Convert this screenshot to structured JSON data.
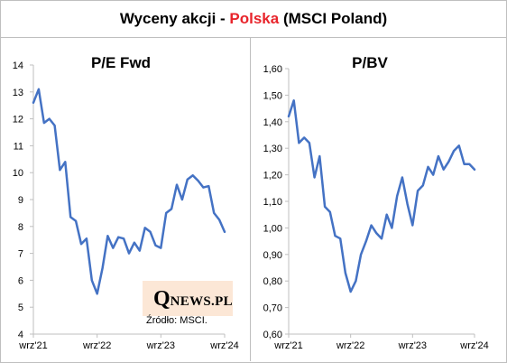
{
  "header": {
    "title_before": "Wyceny akcji - ",
    "title_highlight": "Polska",
    "title_after": " (MSCI Poland)",
    "highlight_color": "#e8242b"
  },
  "logo": {
    "q": "Q",
    "rest": "NEWS.PL"
  },
  "source": "Źródło: MSCI.",
  "line_color": "#4472c4",
  "chart_data": [
    {
      "type": "line",
      "title": "P/E Fwd",
      "x_tick_labels": [
        "wrz'21",
        "wrz'22",
        "wrz'23",
        "wrz'24"
      ],
      "x_tick_index": [
        0,
        12,
        24,
        36
      ],
      "ylim": [
        4,
        14
      ],
      "y_ticks": [
        4,
        5,
        6,
        7,
        8,
        9,
        10,
        11,
        12,
        13,
        14
      ],
      "y_tick_labels": [
        "4",
        "5",
        "6",
        "7",
        "8",
        "9",
        "10",
        "11",
        "12",
        "13",
        "14"
      ],
      "grid": false,
      "series": [
        {
          "values": [
            12.6,
            13.1,
            11.85,
            12.0,
            11.75,
            10.1,
            10.4,
            8.35,
            8.2,
            7.35,
            7.55,
            6.0,
            5.5,
            6.45,
            7.65,
            7.2,
            7.6,
            7.55,
            7.0,
            7.4,
            7.1,
            7.95,
            7.8,
            7.3,
            7.2,
            8.5,
            8.65,
            9.55,
            9.0,
            9.75,
            9.9,
            9.7,
            9.45,
            9.5,
            8.5,
            8.25,
            7.8
          ]
        }
      ]
    },
    {
      "type": "line",
      "title": "P/BV",
      "x_tick_labels": [
        "wrz'21",
        "wrz'22",
        "wrz'23",
        "wrz'24"
      ],
      "x_tick_index": [
        0,
        12,
        24,
        36
      ],
      "ylim": [
        0.6,
        1.6
      ],
      "y_ticks": [
        0.6,
        0.7,
        0.8,
        0.9,
        1.0,
        1.1,
        1.2,
        1.3,
        1.4,
        1.5,
        1.6
      ],
      "y_tick_labels": [
        "0,60",
        "0,70",
        "0,80",
        "0,90",
        "1,00",
        "1,10",
        "1,20",
        "1,30",
        "1,40",
        "1,50",
        "1,60"
      ],
      "grid": false,
      "series": [
        {
          "values": [
            1.42,
            1.48,
            1.32,
            1.34,
            1.32,
            1.19,
            1.27,
            1.08,
            1.06,
            0.97,
            0.96,
            0.83,
            0.76,
            0.8,
            0.9,
            0.95,
            1.01,
            0.98,
            0.96,
            1.05,
            1.0,
            1.12,
            1.19,
            1.09,
            1.01,
            1.14,
            1.16,
            1.23,
            1.2,
            1.27,
            1.22,
            1.25,
            1.29,
            1.31,
            1.24,
            1.24,
            1.22
          ]
        }
      ]
    }
  ]
}
